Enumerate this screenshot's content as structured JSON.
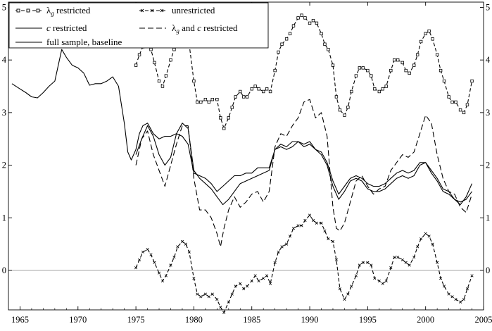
{
  "chart_data": {
    "type": "line",
    "title": "",
    "xlabel": "",
    "ylabel": "",
    "xlim": [
      1964,
      2005
    ],
    "ylim": [
      -0.75,
      5.1
    ],
    "x_ticks": [
      1965,
      1970,
      1975,
      1980,
      1985,
      1990,
      1995,
      2000,
      2005
    ],
    "y_ticks": [
      0,
      1,
      2,
      3,
      4,
      5
    ],
    "zero_line": true,
    "grid": false,
    "legend_position": "top-left",
    "legend": {
      "lambda_prefix": "λ",
      "lambda_subscript": "g",
      "c_symbol": "c",
      "items": [
        {
          "key": "lambda",
          "label_suffix": " restricted"
        },
        {
          "key": "unrestricted",
          "label": "unrestricted"
        },
        {
          "key": "c",
          "label_suffix": " restricted"
        },
        {
          "key": "lambdac",
          "label_middle": " and ",
          "label_suffix": " restricted"
        },
        {
          "key": "full",
          "label": "full sample, baseline"
        }
      ]
    },
    "series": [
      {
        "key": "full",
        "style": "solid",
        "x": [
          1964.3,
          1965,
          1965.5,
          1966,
          1966.5,
          1967,
          1967.5,
          1968,
          1968.3,
          1968.6,
          1969,
          1969.5,
          1970,
          1970.5,
          1971,
          1971.5,
          1972,
          1972.5,
          1973,
          1973.5,
          1974,
          1974.3,
          1974.6,
          1975,
          1975.3,
          1975.6,
          1976,
          1976.5,
          1977,
          1977.5,
          1978,
          1978.5,
          1979,
          1979.5,
          1980,
          1980.5,
          1981,
          1981.5,
          1982,
          1982.5,
          1983,
          1983.5,
          1984,
          1984.5,
          1985,
          1985.5,
          1986,
          1986.5,
          1987,
          1987.5,
          1988,
          1988.5,
          1989,
          1989.5,
          1990,
          1990.5,
          1991,
          1991.5,
          1992,
          1992.5,
          1993,
          1993.5,
          1994,
          1994.5,
          1995,
          1995.5,
          1996,
          1996.5,
          1997,
          1997.5,
          1998,
          1998.5,
          1999,
          1999.5,
          2000,
          2000.5,
          2001,
          2001.5,
          2002,
          2002.5,
          2003,
          2003.5,
          2004
        ],
        "y": [
          3.55,
          3.45,
          3.38,
          3.3,
          3.28,
          3.38,
          3.5,
          3.6,
          3.9,
          4.2,
          4.05,
          3.9,
          3.85,
          3.75,
          3.52,
          3.55,
          3.55,
          3.6,
          3.68,
          3.5,
          2.8,
          2.25,
          2.1,
          2.3,
          2.6,
          2.75,
          2.8,
          2.6,
          2.5,
          2.55,
          2.55,
          2.6,
          2.55,
          2.4,
          1.85,
          1.8,
          1.75,
          1.65,
          1.5,
          1.6,
          1.7,
          1.8,
          1.8,
          1.85,
          1.85,
          1.95,
          1.95,
          1.95,
          2.3,
          2.4,
          2.35,
          2.45,
          2.45,
          2.35,
          2.4,
          2.3,
          2.25,
          2.05,
          1.7,
          1.45,
          1.6,
          1.75,
          1.8,
          1.75,
          1.65,
          1.6,
          1.6,
          1.65,
          1.75,
          1.85,
          1.9,
          1.85,
          1.9,
          2.05,
          2.05,
          1.9,
          1.75,
          1.55,
          1.5,
          1.35,
          1.3,
          1.35,
          1.5
        ]
      },
      {
        "key": "c",
        "style": "solid",
        "x": [
          1975,
          1975.5,
          1976,
          1976.5,
          1977,
          1977.5,
          1978,
          1978.5,
          1979,
          1979.5,
          1980,
          1980.5,
          1981,
          1981.5,
          1982,
          1982.5,
          1983,
          1983.5,
          1984,
          1984.5,
          1985,
          1985.5,
          1986,
          1986.5,
          1987,
          1987.5,
          1988,
          1988.5,
          1989,
          1989.5,
          1990,
          1990.5,
          1991,
          1991.5,
          1992,
          1992.5,
          1993,
          1993.5,
          1994,
          1994.5,
          1995,
          1995.5,
          1996,
          1996.5,
          1997,
          1997.5,
          1998,
          1998.5,
          1999,
          1999.5,
          2000,
          2000.5,
          2001,
          2001.5,
          2002,
          2002.5,
          2003,
          2003.5,
          2004
        ],
        "y": [
          2.2,
          2.5,
          2.75,
          2.55,
          2.2,
          2.0,
          2.15,
          2.6,
          2.8,
          2.7,
          1.9,
          1.75,
          1.65,
          1.55,
          1.4,
          1.25,
          1.35,
          1.5,
          1.65,
          1.7,
          1.75,
          1.8,
          1.85,
          1.9,
          2.3,
          2.35,
          2.3,
          2.35,
          2.45,
          2.4,
          2.45,
          2.3,
          2.2,
          2.0,
          1.6,
          1.35,
          1.5,
          1.7,
          1.75,
          1.7,
          1.55,
          1.5,
          1.5,
          1.55,
          1.65,
          1.75,
          1.8,
          1.75,
          1.8,
          2.0,
          2.05,
          1.85,
          1.7,
          1.5,
          1.45,
          1.35,
          1.25,
          1.4,
          1.65
        ]
      },
      {
        "key": "lambdac",
        "style": "dashed",
        "x": [
          1975,
          1975.5,
          1976,
          1976.5,
          1977,
          1977.5,
          1978,
          1978.5,
          1979,
          1979.5,
          1980,
          1980.5,
          1981,
          1981.5,
          1982,
          1982.3,
          1982.6,
          1983,
          1983.5,
          1984,
          1984.5,
          1985,
          1985.5,
          1986,
          1986.5,
          1987,
          1987.5,
          1988,
          1988.5,
          1989,
          1989.5,
          1990,
          1990.5,
          1991,
          1991.5,
          1992,
          1992.3,
          1992.6,
          1993,
          1993.5,
          1994,
          1994.5,
          1995,
          1995.5,
          1996,
          1996.5,
          1997,
          1997.5,
          1998,
          1998.5,
          1999,
          1999.5,
          2000,
          2000.5,
          2001,
          2001.5,
          2002,
          2002.5,
          2003,
          2003.5,
          2004
        ],
        "y": [
          2.0,
          2.5,
          2.65,
          2.2,
          1.9,
          1.6,
          2.0,
          2.4,
          2.75,
          2.75,
          1.75,
          1.15,
          1.15,
          1.0,
          0.7,
          0.45,
          0.8,
          1.15,
          1.4,
          1.2,
          1.3,
          1.45,
          1.5,
          1.3,
          1.5,
          2.35,
          2.6,
          2.55,
          2.75,
          2.9,
          3.2,
          3.25,
          2.9,
          3.0,
          2.55,
          1.2,
          0.8,
          0.75,
          0.9,
          1.3,
          1.7,
          1.8,
          1.6,
          1.45,
          1.55,
          1.6,
          1.9,
          2.05,
          2.2,
          2.15,
          2.25,
          2.6,
          2.95,
          2.8,
          2.2,
          1.75,
          1.5,
          1.45,
          1.2,
          1.1,
          1.45
        ]
      },
      {
        "key": "lambda",
        "style": "dashed-square",
        "x": [
          1975,
          1975.3,
          1975.6,
          1976,
          1976.3,
          1976.6,
          1977,
          1977.3,
          1977.6,
          1978,
          1978.3,
          1978.6,
          1979,
          1979.3,
          1979.6,
          1980,
          1980.3,
          1980.6,
          1981,
          1981.3,
          1981.6,
          1982,
          1982.3,
          1982.6,
          1983,
          1983.3,
          1983.6,
          1984,
          1984.3,
          1984.6,
          1985,
          1985.3,
          1985.6,
          1986,
          1986.3,
          1986.6,
          1987,
          1987.3,
          1987.6,
          1988,
          1988.3,
          1988.6,
          1989,
          1989.3,
          1989.6,
          1990,
          1990.3,
          1990.6,
          1991,
          1991.3,
          1991.6,
          1992,
          1992.3,
          1992.6,
          1993,
          1993.3,
          1993.6,
          1994,
          1994.3,
          1994.6,
          1995,
          1995.3,
          1995.6,
          1996,
          1996.3,
          1996.6,
          1997,
          1997.3,
          1997.6,
          1998,
          1998.3,
          1998.6,
          1999,
          1999.3,
          1999.6,
          2000,
          2000.3,
          2000.6,
          2001,
          2001.3,
          2001.6,
          2002,
          2002.3,
          2002.6,
          2003,
          2003.3,
          2003.6,
          2004
        ],
        "y": [
          3.9,
          4.1,
          4.25,
          4.3,
          4.2,
          3.95,
          3.6,
          3.5,
          3.7,
          4.0,
          4.2,
          4.35,
          4.4,
          4.45,
          4.3,
          3.6,
          3.2,
          3.2,
          3.25,
          3.2,
          3.25,
          3.25,
          2.9,
          2.7,
          2.9,
          3.1,
          3.3,
          3.4,
          3.3,
          3.3,
          3.45,
          3.5,
          3.45,
          3.4,
          3.45,
          3.4,
          3.8,
          4.15,
          4.3,
          4.4,
          4.5,
          4.65,
          4.8,
          4.85,
          4.8,
          4.7,
          4.75,
          4.7,
          4.5,
          4.3,
          4.2,
          3.9,
          3.3,
          3.05,
          2.95,
          3.1,
          3.4,
          3.7,
          3.85,
          3.85,
          3.8,
          3.7,
          3.45,
          3.4,
          3.45,
          3.5,
          3.8,
          4.0,
          4.0,
          3.95,
          3.8,
          3.75,
          3.9,
          4.1,
          4.35,
          4.5,
          4.55,
          4.4,
          4.1,
          3.8,
          3.6,
          3.3,
          3.2,
          3.2,
          3.05,
          3.0,
          3.15,
          3.6
        ]
      },
      {
        "key": "unrestricted",
        "style": "dashed-x",
        "x": [
          1975,
          1975.3,
          1975.6,
          1976,
          1976.3,
          1976.6,
          1977,
          1977.3,
          1977.6,
          1978,
          1978.3,
          1978.6,
          1979,
          1979.3,
          1979.6,
          1980,
          1980.3,
          1980.6,
          1981,
          1981.3,
          1981.6,
          1982,
          1982.3,
          1982.6,
          1983,
          1983.3,
          1983.6,
          1984,
          1984.3,
          1984.6,
          1985,
          1985.3,
          1985.6,
          1986,
          1986.3,
          1986.6,
          1987,
          1987.3,
          1987.6,
          1988,
          1988.3,
          1988.6,
          1989,
          1989.3,
          1989.6,
          1990,
          1990.3,
          1990.6,
          1991,
          1991.3,
          1991.6,
          1992,
          1992.3,
          1992.6,
          1993,
          1993.3,
          1993.6,
          1994,
          1994.3,
          1994.6,
          1995,
          1995.3,
          1995.6,
          1996,
          1996.3,
          1996.6,
          1997,
          1997.3,
          1997.6,
          1998,
          1998.3,
          1998.6,
          1999,
          1999.3,
          1999.6,
          2000,
          2000.3,
          2000.6,
          2001,
          2001.3,
          2001.6,
          2002,
          2002.3,
          2002.6,
          2003,
          2003.3,
          2003.6,
          2004
        ],
        "y": [
          0.05,
          0.2,
          0.35,
          0.4,
          0.3,
          0.15,
          -0.05,
          -0.2,
          -0.1,
          0.1,
          0.25,
          0.45,
          0.55,
          0.5,
          0.35,
          -0.15,
          -0.45,
          -0.5,
          -0.45,
          -0.5,
          -0.45,
          -0.55,
          -0.7,
          -0.8,
          -0.6,
          -0.45,
          -0.3,
          -0.25,
          -0.35,
          -0.3,
          -0.2,
          -0.1,
          -0.2,
          -0.15,
          -0.1,
          -0.25,
          0.15,
          0.35,
          0.45,
          0.5,
          0.65,
          0.8,
          0.85,
          0.85,
          0.95,
          1.05,
          0.95,
          0.9,
          0.9,
          0.75,
          0.6,
          0.55,
          0.2,
          -0.35,
          -0.55,
          -0.45,
          -0.3,
          -0.1,
          0.1,
          0.15,
          0.15,
          0.1,
          -0.15,
          -0.2,
          -0.25,
          -0.2,
          0.05,
          0.25,
          0.25,
          0.2,
          0.15,
          0.1,
          0.25,
          0.45,
          0.6,
          0.7,
          0.65,
          0.5,
          0.15,
          -0.15,
          -0.3,
          -0.45,
          -0.5,
          -0.55,
          -0.6,
          -0.55,
          -0.35,
          -0.1
        ]
      }
    ]
  }
}
